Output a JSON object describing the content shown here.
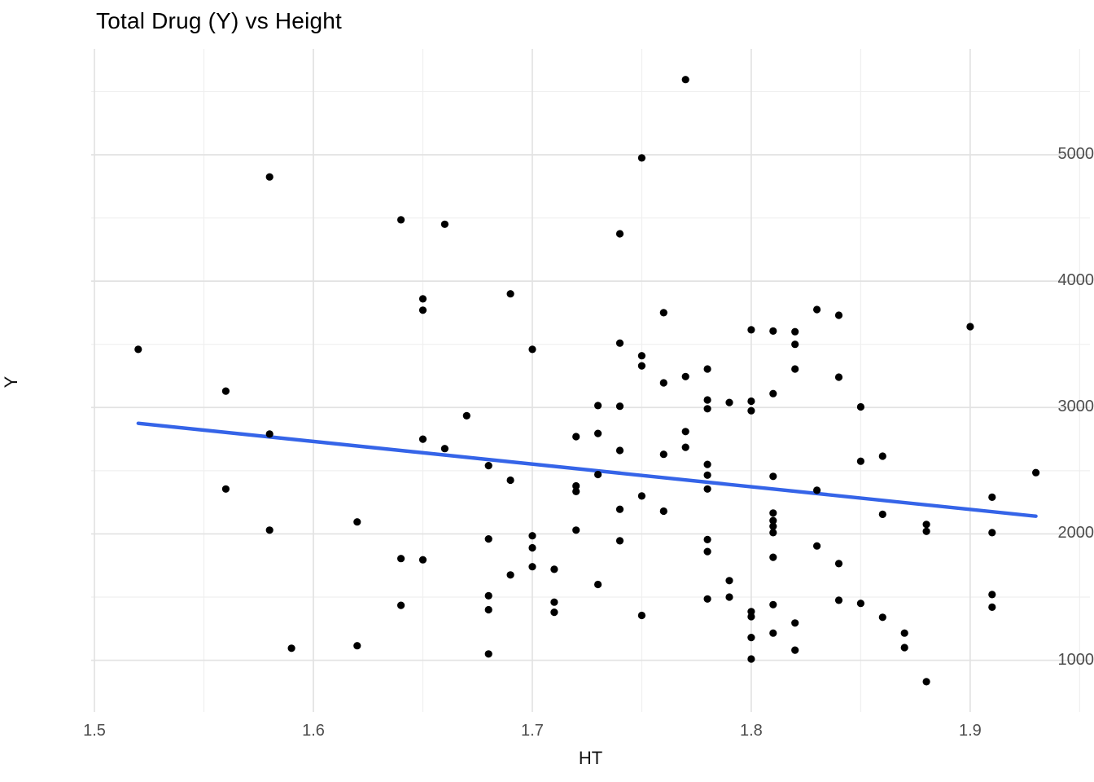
{
  "chart": {
    "title": "Total Drug (Y) vs Height",
    "xlabel": "HT",
    "ylabel": "Y"
  },
  "chart_data": {
    "type": "scatter",
    "title": "Total Drug (Y) vs Height",
    "xlabel": "HT",
    "ylabel": "Y",
    "xlim": [
      1.4985,
      1.9547
    ],
    "ylim": [
      591,
      5838
    ],
    "x_ticks": [
      1.5,
      1.6,
      1.7,
      1.8,
      1.9
    ],
    "x_minor_ticks": [
      1.55,
      1.65,
      1.75,
      1.85,
      1.95
    ],
    "y_ticks": [
      1000,
      2000,
      3000,
      4000,
      5000
    ],
    "y_minor_ticks": [
      1500,
      2500,
      3500,
      4500,
      5500
    ],
    "grid": true,
    "legend": false,
    "point_color": "#000000",
    "grid_major_color": "#e2e2e2",
    "grid_minor_color": "#efefef",
    "trend_line": {
      "type": "linear",
      "x1": 1.52,
      "y1": 2875,
      "x2": 1.93,
      "y2": 2140,
      "color": "#3564e8"
    },
    "points": [
      [
        1.52,
        3460
      ],
      [
        1.56,
        3130
      ],
      [
        1.56,
        2355
      ],
      [
        1.58,
        4825
      ],
      [
        1.58,
        2790
      ],
      [
        1.58,
        2030
      ],
      [
        1.59,
        1095
      ],
      [
        1.62,
        2095
      ],
      [
        1.62,
        1115
      ],
      [
        1.64,
        4485
      ],
      [
        1.64,
        1805
      ],
      [
        1.64,
        1435
      ],
      [
        1.65,
        3860
      ],
      [
        1.65,
        3770
      ],
      [
        1.65,
        2750
      ],
      [
        1.65,
        1795
      ],
      [
        1.66,
        4450
      ],
      [
        1.66,
        2675
      ],
      [
        1.67,
        2935
      ],
      [
        1.68,
        2540
      ],
      [
        1.68,
        1960
      ],
      [
        1.68,
        1510
      ],
      [
        1.68,
        1400
      ],
      [
        1.68,
        1050
      ],
      [
        1.69,
        3900
      ],
      [
        1.69,
        2425
      ],
      [
        1.69,
        1675
      ],
      [
        1.7,
        3460
      ],
      [
        1.7,
        1985
      ],
      [
        1.7,
        1890
      ],
      [
        1.7,
        1740
      ],
      [
        1.71,
        1720
      ],
      [
        1.71,
        1460
      ],
      [
        1.71,
        1380
      ],
      [
        1.72,
        2770
      ],
      [
        1.72,
        2380
      ],
      [
        1.72,
        2335
      ],
      [
        1.72,
        2030
      ],
      [
        1.73,
        3015
      ],
      [
        1.73,
        2795
      ],
      [
        1.73,
        2470
      ],
      [
        1.73,
        1600
      ],
      [
        1.74,
        4375
      ],
      [
        1.74,
        3510
      ],
      [
        1.74,
        3010
      ],
      [
        1.74,
        2660
      ],
      [
        1.74,
        2195
      ],
      [
        1.74,
        1945
      ],
      [
        1.75,
        4975
      ],
      [
        1.75,
        3410
      ],
      [
        1.75,
        3330
      ],
      [
        1.75,
        2300
      ],
      [
        1.75,
        1355
      ],
      [
        1.76,
        3750
      ],
      [
        1.76,
        3195
      ],
      [
        1.76,
        2630
      ],
      [
        1.76,
        2180
      ],
      [
        1.77,
        5595
      ],
      [
        1.77,
        3245
      ],
      [
        1.77,
        2810
      ],
      [
        1.77,
        2685
      ],
      [
        1.78,
        3305
      ],
      [
        1.78,
        3060
      ],
      [
        1.78,
        2990
      ],
      [
        1.78,
        2550
      ],
      [
        1.78,
        2465
      ],
      [
        1.78,
        2355
      ],
      [
        1.78,
        1955
      ],
      [
        1.78,
        1860
      ],
      [
        1.78,
        1485
      ],
      [
        1.79,
        3040
      ],
      [
        1.79,
        1630
      ],
      [
        1.79,
        1500
      ],
      [
        1.8,
        3615
      ],
      [
        1.8,
        3050
      ],
      [
        1.8,
        2975
      ],
      [
        1.8,
        1385
      ],
      [
        1.8,
        1345
      ],
      [
        1.8,
        1180
      ],
      [
        1.8,
        1010
      ],
      [
        1.81,
        3605
      ],
      [
        1.81,
        3110
      ],
      [
        1.81,
        2455
      ],
      [
        1.81,
        2165
      ],
      [
        1.81,
        2105
      ],
      [
        1.81,
        2060
      ],
      [
        1.81,
        2010
      ],
      [
        1.81,
        1815
      ],
      [
        1.81,
        1440
      ],
      [
        1.81,
        1215
      ],
      [
        1.82,
        3600
      ],
      [
        1.82,
        3500
      ],
      [
        1.82,
        3305
      ],
      [
        1.82,
        1295
      ],
      [
        1.82,
        1080
      ],
      [
        1.83,
        3775
      ],
      [
        1.83,
        2345
      ],
      [
        1.83,
        1905
      ],
      [
        1.84,
        3730
      ],
      [
        1.84,
        3240
      ],
      [
        1.84,
        1765
      ],
      [
        1.84,
        1475
      ],
      [
        1.85,
        3005
      ],
      [
        1.85,
        2575
      ],
      [
        1.85,
        1450
      ],
      [
        1.86,
        2615
      ],
      [
        1.86,
        2155
      ],
      [
        1.86,
        1340
      ],
      [
        1.87,
        1215
      ],
      [
        1.87,
        1100
      ],
      [
        1.88,
        2075
      ],
      [
        1.88,
        2020
      ],
      [
        1.88,
        830
      ],
      [
        1.9,
        3640
      ],
      [
        1.91,
        2290
      ],
      [
        1.91,
        2010
      ],
      [
        1.91,
        1520
      ],
      [
        1.91,
        1420
      ],
      [
        1.93,
        2485
      ]
    ]
  }
}
